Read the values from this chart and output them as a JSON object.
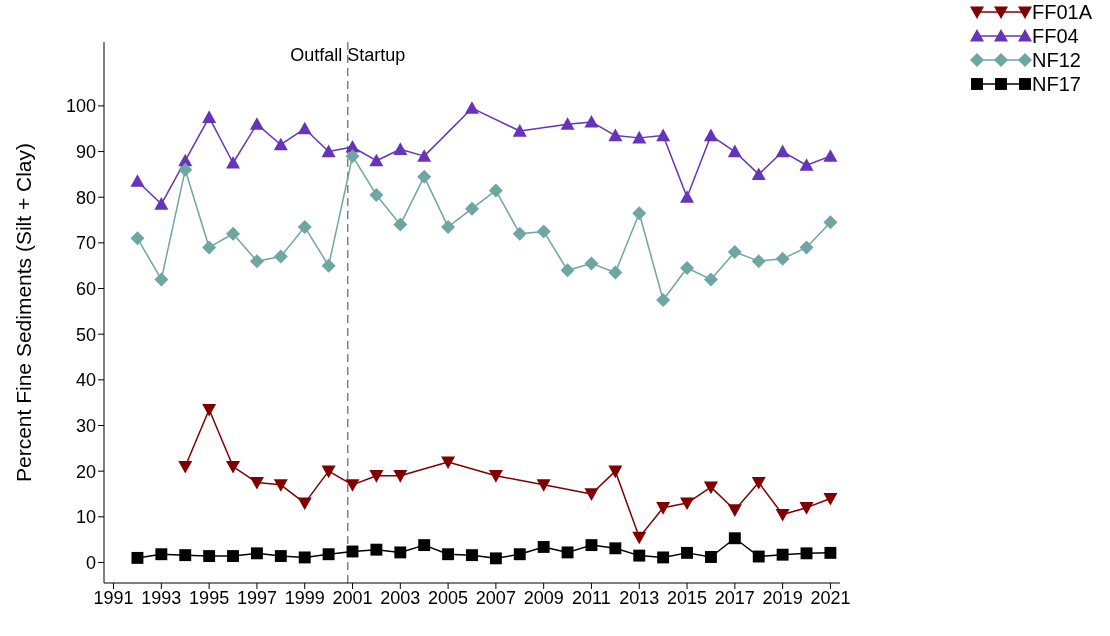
{
  "chart_data": {
    "type": "line",
    "ylabel": "Percent Fine Sediments (Silt + Clay)",
    "xlim": [
      1990.6,
      2021.4
    ],
    "xticks": [
      1991,
      1993,
      1995,
      1997,
      1999,
      2001,
      2003,
      2005,
      2007,
      2009,
      2011,
      2013,
      2015,
      2017,
      2019,
      2021
    ],
    "ylim": [
      -4.5,
      114
    ],
    "yticks": [
      0,
      10,
      20,
      30,
      40,
      50,
      60,
      70,
      80,
      90,
      100
    ],
    "grid": false,
    "legend": "top right",
    "line_style": "solid",
    "ref_lines": [
      {
        "axis": "x",
        "value": 2000.8,
        "label": "Outfall Startup",
        "color": "#808080",
        "line_style": "dashed"
      }
    ],
    "series": [
      {
        "name": "FF01A",
        "color": "#800000",
        "marker": "triangle-down",
        "x": [
          1994,
          1995,
          1996,
          1997,
          1998,
          1999,
          2000,
          2001,
          2002,
          2003,
          2005,
          2007,
          2009,
          2011,
          2012,
          2013,
          2014,
          2015,
          2016,
          2017,
          2018,
          2019,
          2020,
          2021
        ],
        "values": [
          21,
          33.5,
          21,
          17.5,
          17,
          13,
          20,
          17,
          19,
          19,
          22,
          19,
          17,
          15,
          20,
          5.5,
          12,
          13,
          16.5,
          11.5,
          17.5,
          10.5,
          12,
          14
        ]
      },
      {
        "name": "FF04",
        "color": "#6633bb",
        "marker": "triangle",
        "x": [
          1992,
          1993,
          1994,
          1995,
          1996,
          1997,
          1998,
          1999,
          2000,
          2001,
          2002,
          2003,
          2004,
          2006,
          2008,
          2010,
          2011,
          2012,
          2013,
          2014,
          2015,
          2016,
          2017,
          2018,
          2019,
          2020,
          2021
        ],
        "values": [
          83.5,
          78.5,
          88,
          97.5,
          87.5,
          96,
          91.5,
          95,
          90,
          91,
          88,
          90.5,
          89,
          99.5,
          94.5,
          96,
          96.5,
          93.5,
          93,
          93.5,
          80,
          93.5,
          90,
          85,
          90,
          87,
          89
        ]
      },
      {
        "name": "NF12",
        "color": "#6ea6a2",
        "marker": "diamond",
        "x": [
          1992,
          1993,
          1994,
          1995,
          1996,
          1997,
          1998,
          1999,
          2000,
          2001,
          2002,
          2003,
          2004,
          2005,
          2006,
          2007,
          2008,
          2009,
          2010,
          2011,
          2012,
          2013,
          2014,
          2015,
          2016,
          2017,
          2018,
          2019,
          2020,
          2021
        ],
        "values": [
          71,
          62,
          86,
          69,
          72,
          66,
          67,
          73.5,
          65,
          89,
          80.5,
          74,
          84.5,
          73.5,
          77.5,
          81.5,
          72,
          72.5,
          64,
          65.5,
          63.5,
          76.5,
          57.5,
          64.5,
          62,
          68,
          66,
          66.5,
          69,
          74.5
        ]
      },
      {
        "name": "NF17",
        "color": "#000000",
        "marker": "square",
        "x": [
          1992,
          1993,
          1994,
          1995,
          1996,
          1997,
          1998,
          1999,
          2000,
          2001,
          2002,
          2003,
          2004,
          2005,
          2006,
          2007,
          2008,
          2009,
          2010,
          2011,
          2012,
          2013,
          2014,
          2015,
          2016,
          2017,
          2018,
          2019,
          2020,
          2021
        ],
        "values": [
          1,
          1.8,
          1.6,
          1.4,
          1.4,
          2,
          1.4,
          1.1,
          1.8,
          2.4,
          2.8,
          2.2,
          3.8,
          1.8,
          1.6,
          0.9,
          1.8,
          3.4,
          2.2,
          3.8,
          3.1,
          1.5,
          1.1,
          2.1,
          1.2,
          5.3,
          1.3,
          1.7,
          2,
          2.1
        ]
      }
    ]
  }
}
